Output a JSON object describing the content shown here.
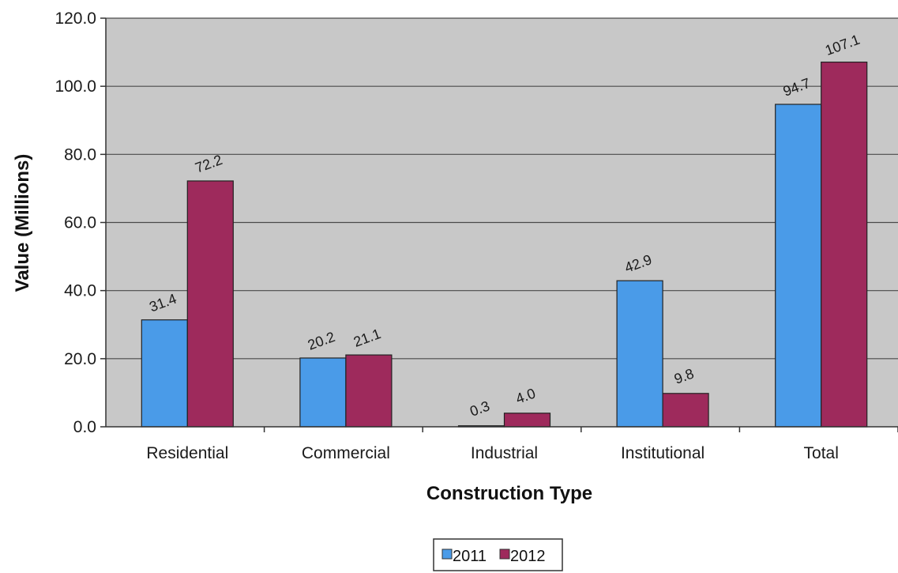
{
  "chart_data": {
    "type": "bar",
    "xlabel": "Construction Type",
    "ylabel": "Value (Millions)",
    "categories": [
      "Residential",
      "Commercial",
      "Industrial",
      "Institutional",
      "Total"
    ],
    "series": [
      {
        "name": "2011",
        "values": [
          31.4,
          20.2,
          0.3,
          42.9,
          94.7
        ],
        "labels": [
          "31.4",
          "20.2",
          "0.3",
          "42.9",
          "94.7"
        ],
        "color": "#4a9be8"
      },
      {
        "name": "2012",
        "values": [
          72.2,
          21.1,
          4.0,
          9.8,
          107.1
        ],
        "labels": [
          "72.2",
          "21.1",
          "4.0",
          "9.8",
          "107.1"
        ],
        "color": "#9e2a5c"
      }
    ],
    "ylim": [
      0,
      120
    ],
    "yticks": [
      "0.0",
      "20.0",
      "40.0",
      "60.0",
      "80.0",
      "100.0",
      "120.0"
    ],
    "grid": true,
    "plot_background": "#c8c8c8",
    "legend_position": "bottom"
  }
}
